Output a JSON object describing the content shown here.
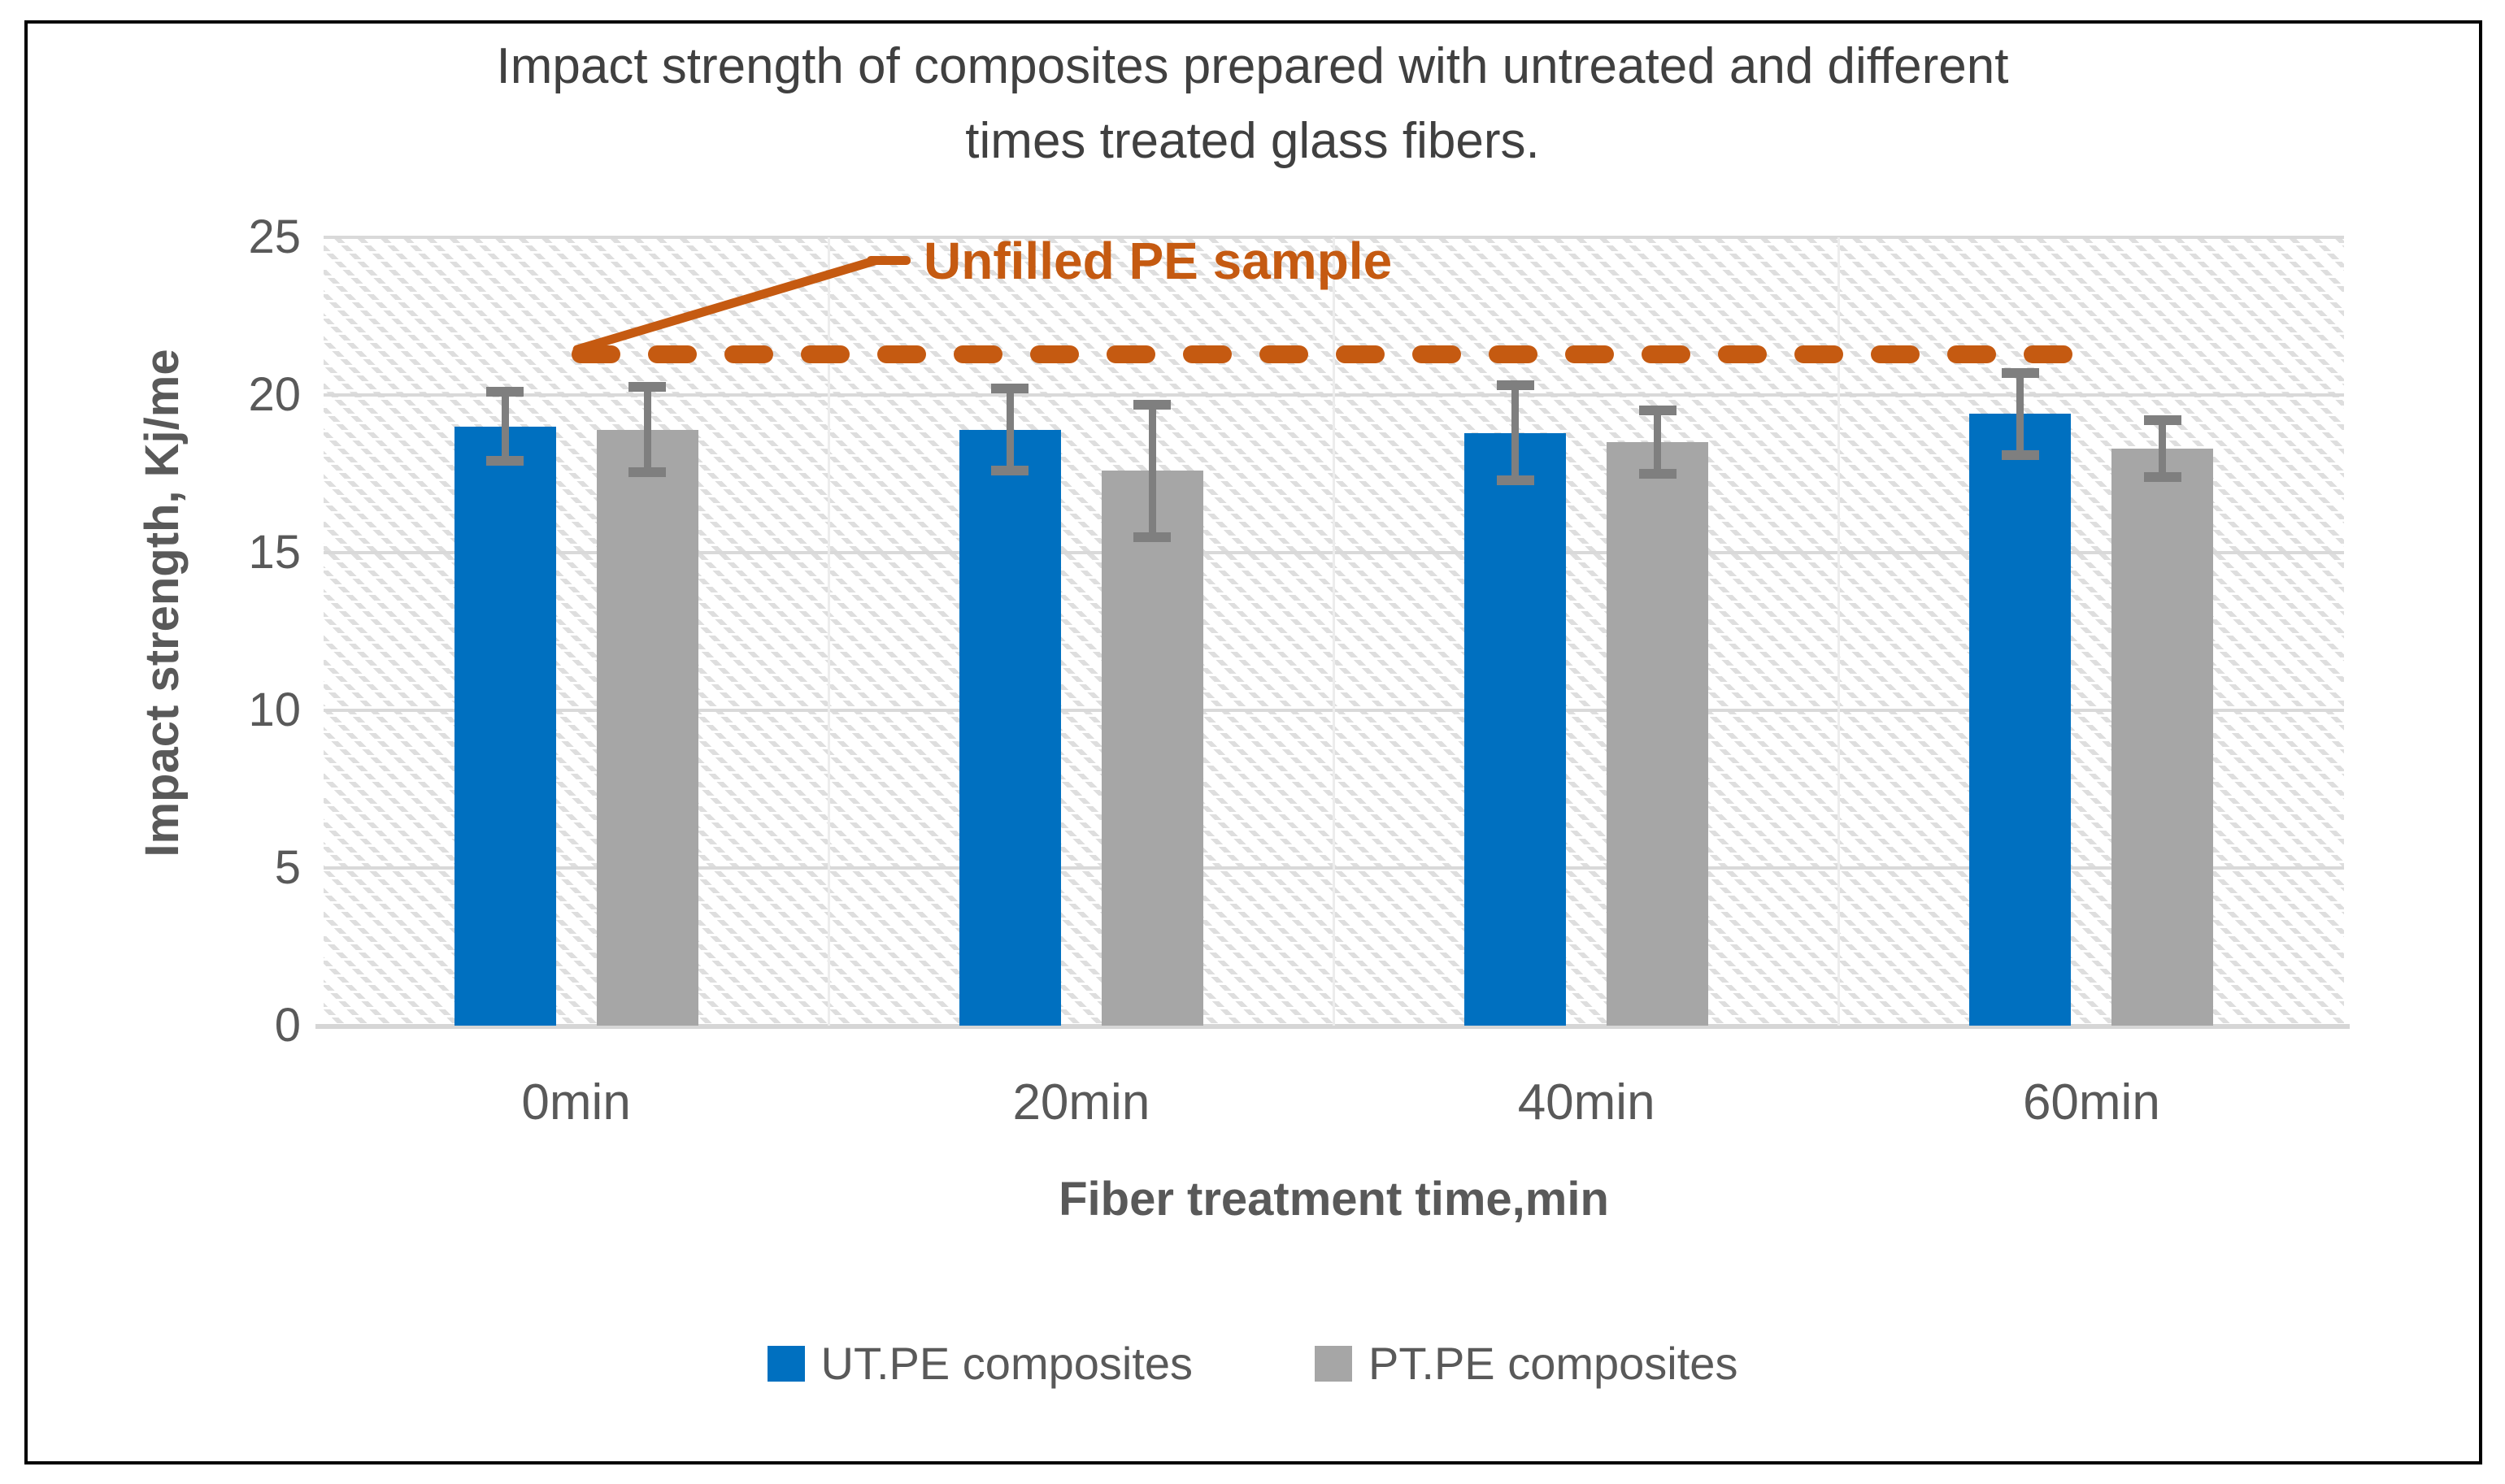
{
  "figure": {
    "title_lines": [
      "Impact strength  of composites prepared with untreated and different",
      "times treated glass fibers."
    ]
  },
  "chart_data": {
    "type": "bar",
    "title": "Impact strength of composites prepared with untreated and different times treated glass fibers.",
    "categories": [
      "0min",
      "20min",
      "40min",
      "60min"
    ],
    "series": [
      {
        "name": "UT.PE composites",
        "color": "#0070C0",
        "values": [
          19.0,
          18.9,
          18.8,
          19.4
        ],
        "error_bars": [
          1.1,
          1.3,
          1.5,
          1.3
        ]
      },
      {
        "name": "PT.PE composites",
        "color": "#A6A6A6",
        "values": [
          18.9,
          17.6,
          18.5,
          18.3
        ],
        "error_bars": [
          1.35,
          2.1,
          1.0,
          0.9
        ]
      }
    ],
    "reference_line": {
      "label": "Unfilled PE sample",
      "value": 21.3,
      "color": "#C55A11",
      "style": "dashed"
    },
    "xlabel": "Fiber treatment time,min",
    "ylabel": "Impact strength, Kj/me",
    "ylim": [
      0,
      25
    ],
    "yticks": [
      0,
      5,
      10,
      15,
      20,
      25
    ],
    "grid": "horizontal",
    "legend_position": "bottom",
    "error_bar_color": "#7f7f7f",
    "gridline_color": "#d9d9d9"
  }
}
